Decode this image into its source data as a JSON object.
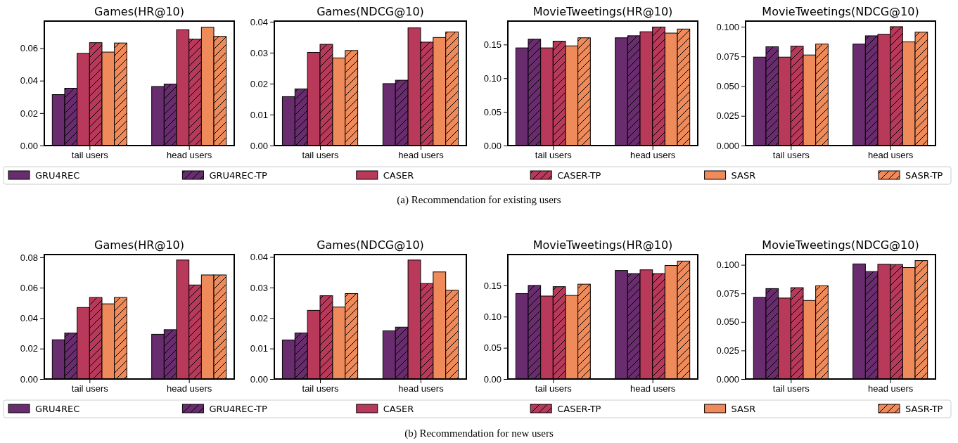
{
  "chart_data": [
    {
      "type": "bar",
      "title": "Games(HR@10)",
      "categories": [
        "tail users",
        "head users"
      ],
      "ylim": [
        0,
        0.0767
      ],
      "yticks": [
        {
          "value": 0,
          "label": "0.00"
        },
        {
          "value": 0.02,
          "label": "0.02"
        },
        {
          "value": 0.04,
          "label": "0.04"
        },
        {
          "value": 0.06,
          "label": "0.06"
        }
      ],
      "legend": "bottom",
      "series": [
        {
          "name": "GRU4REC",
          "color": "#692c6e",
          "values": [
            0.0314,
            0.0364
          ]
        },
        {
          "name": "GRU4REC-TP",
          "color": "#692c6e",
          "values": [
            0.0353,
            0.0379
          ]
        },
        {
          "name": "CASER",
          "color": "#b9395b",
          "values": [
            0.0568,
            0.0714
          ]
        },
        {
          "name": "CASER-TP",
          "color": "#b9395b",
          "values": [
            0.0634,
            0.0656
          ]
        },
        {
          "name": "SASR",
          "color": "#ef8a5b",
          "values": [
            0.0576,
            0.0729
          ]
        },
        {
          "name": "SASR-TP",
          "color": "#ef8a5b",
          "values": [
            0.0632,
            0.0673
          ]
        }
      ]
    },
    {
      "type": "bar",
      "title": "Games(NDCG@10)",
      "categories": [
        "tail users",
        "head users"
      ],
      "ylim": [
        0,
        0.0402
      ],
      "yticks": [
        {
          "value": 0,
          "label": "0.00"
        },
        {
          "value": 0.01,
          "label": "0.01"
        },
        {
          "value": 0.02,
          "label": "0.02"
        },
        {
          "value": 0.03,
          "label": "0.03"
        },
        {
          "value": 0.04,
          "label": "0.04"
        }
      ],
      "series": [
        {
          "color": "#692c6e",
          "values": [
            0.0158,
            0.02
          ]
        },
        {
          "color": "#692c6e",
          "values": [
            0.0183,
            0.0211
          ]
        },
        {
          "color": "#b9395b",
          "values": [
            0.0301,
            0.038
          ]
        },
        {
          "color": "#b9395b",
          "values": [
            0.0327,
            0.0334
          ]
        },
        {
          "color": "#ef8a5b",
          "values": [
            0.0283,
            0.0349
          ]
        },
        {
          "color": "#ef8a5b",
          "values": [
            0.0307,
            0.0367
          ]
        }
      ]
    },
    {
      "type": "bar",
      "title": "MovieTweetings(HR@10)",
      "categories": [
        "tail users",
        "head users"
      ],
      "ylim": [
        0,
        0.1848
      ],
      "yticks": [
        {
          "value": 0,
          "label": "0.00"
        },
        {
          "value": 0.05,
          "label": "0.05"
        },
        {
          "value": 0.1,
          "label": "0.10"
        },
        {
          "value": 0.15,
          "label": "0.15"
        }
      ],
      "series": [
        {
          "color": "#692c6e",
          "values": [
            0.145,
            0.16
          ]
        },
        {
          "color": "#692c6e",
          "values": [
            0.158,
            0.163
          ]
        },
        {
          "color": "#b9395b",
          "values": [
            0.145,
            0.169
          ]
        },
        {
          "color": "#b9395b",
          "values": [
            0.155,
            0.176
          ]
        },
        {
          "color": "#ef8a5b",
          "values": [
            0.148,
            0.167
          ]
        },
        {
          "color": "#ef8a5b",
          "values": [
            0.16,
            0.173
          ]
        }
      ]
    },
    {
      "type": "bar",
      "title": "MovieTweetings(NDCG@10)",
      "categories": [
        "tail users",
        "head users"
      ],
      "ylim": [
        0,
        0.1047
      ],
      "yticks": [
        {
          "value": 0,
          "label": "0.000"
        },
        {
          "value": 0.025,
          "label": "0.025"
        },
        {
          "value": 0.05,
          "label": "0.050"
        },
        {
          "value": 0.075,
          "label": "0.075"
        },
        {
          "value": 0.1,
          "label": "0.100"
        }
      ],
      "annotations": [
        "(a) Recommendation for existing users"
      ],
      "series": [
        {
          "color": "#692c6e",
          "values": [
            0.0744,
            0.0854
          ]
        },
        {
          "color": "#692c6e",
          "values": [
            0.0831,
            0.0923
          ]
        },
        {
          "color": "#b9395b",
          "values": [
            0.0744,
            0.0936
          ]
        },
        {
          "color": "#b9395b",
          "values": [
            0.0836,
            0.1
          ]
        },
        {
          "color": "#ef8a5b",
          "values": [
            0.0762,
            0.0872
          ]
        },
        {
          "color": "#ef8a5b",
          "values": [
            0.0854,
            0.0954
          ]
        }
      ]
    },
    {
      "type": "bar",
      "title": "Games(HR@10)",
      "categories": [
        "tail users",
        "head users"
      ],
      "ylim": [
        0,
        0.0818
      ],
      "yticks": [
        {
          "value": 0,
          "label": "0.00"
        },
        {
          "value": 0.02,
          "label": "0.02"
        },
        {
          "value": 0.04,
          "label": "0.04"
        },
        {
          "value": 0.06,
          "label": "0.06"
        },
        {
          "value": 0.08,
          "label": "0.08"
        }
      ],
      "legend": "bottom",
      "series": [
        {
          "name": "GRU4REC",
          "color": "#692c6e",
          "values": [
            0.0258,
            0.0294
          ]
        },
        {
          "name": "GRU4REC-TP",
          "color": "#692c6e",
          "values": [
            0.0302,
            0.0324
          ]
        },
        {
          "name": "CASER",
          "color": "#b9395b",
          "values": [
            0.047,
            0.0782
          ]
        },
        {
          "name": "CASER-TP",
          "color": "#b9395b",
          "values": [
            0.0536,
            0.0618
          ]
        },
        {
          "name": "SASR",
          "color": "#ef8a5b",
          "values": [
            0.0494,
            0.0684
          ]
        },
        {
          "name": "SASR-TP",
          "color": "#ef8a5b",
          "values": [
            0.0536,
            0.0684
          ]
        }
      ]
    },
    {
      "type": "bar",
      "title": "Games(NDCG@10)",
      "categories": [
        "tail users",
        "head users"
      ],
      "ylim": [
        0,
        0.0408
      ],
      "yticks": [
        {
          "value": 0,
          "label": "0.00"
        },
        {
          "value": 0.01,
          "label": "0.01"
        },
        {
          "value": 0.02,
          "label": "0.02"
        },
        {
          "value": 0.03,
          "label": "0.03"
        },
        {
          "value": 0.04,
          "label": "0.04"
        }
      ],
      "series": [
        {
          "color": "#692c6e",
          "values": [
            0.0128,
            0.0158
          ]
        },
        {
          "color": "#692c6e",
          "values": [
            0.0151,
            0.017
          ]
        },
        {
          "color": "#b9395b",
          "values": [
            0.0225,
            0.039
          ]
        },
        {
          "color": "#b9395b",
          "values": [
            0.0273,
            0.0313
          ]
        },
        {
          "color": "#ef8a5b",
          "values": [
            0.0236,
            0.0351
          ]
        },
        {
          "color": "#ef8a5b",
          "values": [
            0.028,
            0.0291
          ]
        }
      ]
    },
    {
      "type": "bar",
      "title": "MovieTweetings(HR@10)",
      "categories": [
        "tail users",
        "head users"
      ],
      "ylim": [
        0,
        0.1995
      ],
      "yticks": [
        {
          "value": 0,
          "label": "0.00"
        },
        {
          "value": 0.05,
          "label": "0.05"
        },
        {
          "value": 0.1,
          "label": "0.10"
        },
        {
          "value": 0.15,
          "label": "0.15"
        }
      ],
      "series": [
        {
          "color": "#692c6e",
          "values": [
            0.137,
            0.174
          ]
        },
        {
          "color": "#692c6e",
          "values": [
            0.15,
            0.169
          ]
        },
        {
          "color": "#b9395b",
          "values": [
            0.133,
            0.175
          ]
        },
        {
          "color": "#b9395b",
          "values": [
            0.148,
            0.169
          ]
        },
        {
          "color": "#ef8a5b",
          "values": [
            0.134,
            0.182
          ]
        },
        {
          "color": "#ef8a5b",
          "values": [
            0.152,
            0.189
          ]
        }
      ]
    },
    {
      "type": "bar",
      "title": "MovieTweetings(NDCG@10)",
      "categories": [
        "tail users",
        "head users"
      ],
      "ylim": [
        0,
        0.109
      ],
      "yticks": [
        {
          "value": 0,
          "label": "0.000"
        },
        {
          "value": 0.025,
          "label": "0.025"
        },
        {
          "value": 0.05,
          "label": "0.050"
        },
        {
          "value": 0.075,
          "label": "0.075"
        },
        {
          "value": 0.1,
          "label": "0.100"
        }
      ],
      "annotations": [
        "(b) Recommendation for new users"
      ],
      "series": [
        {
          "color": "#692c6e",
          "values": [
            0.0715,
            0.1008
          ]
        },
        {
          "color": "#692c6e",
          "values": [
            0.0792,
            0.0941
          ]
        },
        {
          "color": "#b9395b",
          "values": [
            0.0709,
            0.1005
          ]
        },
        {
          "color": "#b9395b",
          "values": [
            0.08,
            0.1003
          ]
        },
        {
          "color": "#ef8a5b",
          "values": [
            0.0688,
            0.0976
          ]
        },
        {
          "color": "#ef8a5b",
          "values": [
            0.0816,
            0.1037
          ]
        }
      ]
    }
  ]
}
